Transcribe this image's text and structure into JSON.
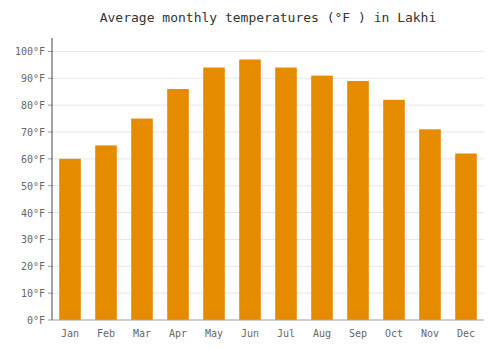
{
  "chart_data": {
    "type": "bar",
    "title": "Average monthly temperatures (°F ) in Lakhi",
    "categories": [
      "Jan",
      "Feb",
      "Mar",
      "Apr",
      "May",
      "Jun",
      "Jul",
      "Aug",
      "Sep",
      "Oct",
      "Nov",
      "Dec"
    ],
    "values": [
      60,
      65,
      75,
      86,
      94,
      97,
      94,
      91,
      89,
      82,
      71,
      62
    ],
    "color": "#E68A00",
    "ylim": [
      0,
      105
    ],
    "yticks": [
      {
        "value": 0,
        "label": "0°F"
      },
      {
        "value": 10,
        "label": "10°F"
      },
      {
        "value": 20,
        "label": "20°F"
      },
      {
        "value": 30,
        "label": "30°F"
      },
      {
        "value": 40,
        "label": "40°F"
      },
      {
        "value": 50,
        "label": "50°F"
      },
      {
        "value": 60,
        "label": "60°F"
      },
      {
        "value": 70,
        "label": "70°F"
      },
      {
        "value": 80,
        "label": "80°F"
      },
      {
        "value": 90,
        "label": "90°F"
      },
      {
        "value": 100,
        "label": "100°F"
      }
    ],
    "grid": true
  }
}
